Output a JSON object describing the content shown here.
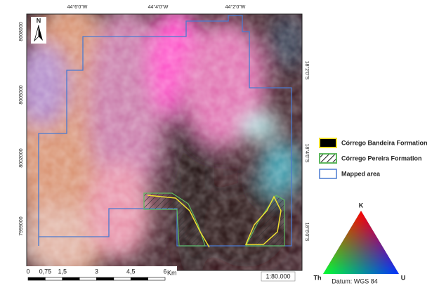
{
  "map": {
    "north_arrow": "N",
    "top_labels": [
      "44°6'0\"W",
      "44°4'0\"W",
      "44°2'0\"W"
    ],
    "left_labels": [
      "8008000",
      "8005000",
      "8002000",
      "7999000"
    ],
    "right_labels": [
      "18°2'0\"S",
      "18°4'0\"S",
      "18°6'0\"S"
    ],
    "legend": [
      {
        "label": "Córrego Bandeira Formation"
      },
      {
        "label": "Córrego Pereira Formation"
      },
      {
        "label": "Mapped area"
      }
    ],
    "scale_bar": {
      "labels": [
        "0",
        "0,75",
        "1,5",
        "3",
        "4,5",
        "6"
      ],
      "unit": "Km"
    },
    "scale": "1:80.000",
    "datum": "Datum: WGS 84",
    "ternary": {
      "top": "K",
      "left": "Th",
      "right": "U"
    }
  }
}
